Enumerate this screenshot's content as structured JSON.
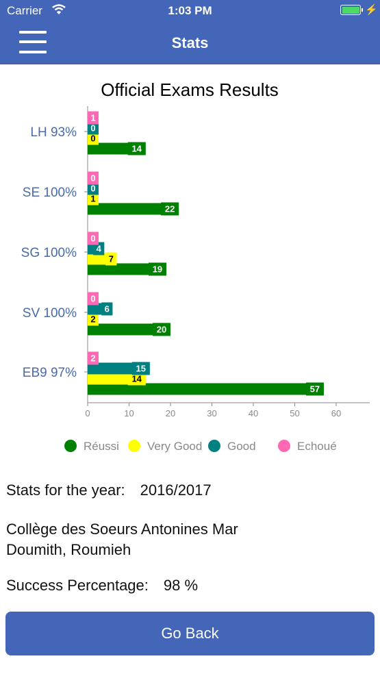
{
  "status_bar": {
    "carrier": "Carrier",
    "time": "1:03 PM",
    "wifi_icon": "wifi-icon",
    "battery_icon": "battery-icon",
    "charging_icon": "charging-bolt-icon"
  },
  "nav": {
    "title": "Stats",
    "menu_icon": "hamburger-menu-icon"
  },
  "chart_data": {
    "type": "bar",
    "orientation": "horizontal",
    "title": "Official Exams Results",
    "categories": [
      "LH 93%",
      "SE 100%",
      "SG 100%",
      "SV 100%",
      "EB9 97%"
    ],
    "series": [
      {
        "name": "Réussi",
        "color": "#008000",
        "values": [
          14,
          22,
          19,
          20,
          57
        ]
      },
      {
        "name": "Very Good",
        "color": "#ffff00",
        "values": [
          0,
          1,
          7,
          2,
          14
        ]
      },
      {
        "name": "Good",
        "color": "#008080",
        "values": [
          0,
          0,
          4,
          6,
          15
        ]
      },
      {
        "name": "Echoué",
        "color": "#ff69b4",
        "values": [
          1,
          0,
          0,
          0,
          2
        ]
      }
    ],
    "xlim": [
      0,
      65
    ],
    "x_ticks": [
      0,
      10,
      20,
      30,
      40,
      50,
      60
    ],
    "legend_position": "bottom",
    "grid": false
  },
  "info": {
    "year_label": "Stats for the year:",
    "year_value": "2016/2017",
    "school": "Collège des Soeurs Antonines Mar Doumith, Roumieh",
    "success_label": "Success Percentage:",
    "success_value": "98 %"
  },
  "buttons": {
    "go_back": "Go Back"
  },
  "colors": {
    "primary": "#4366b8",
    "category_label": "#4a6aa8"
  }
}
